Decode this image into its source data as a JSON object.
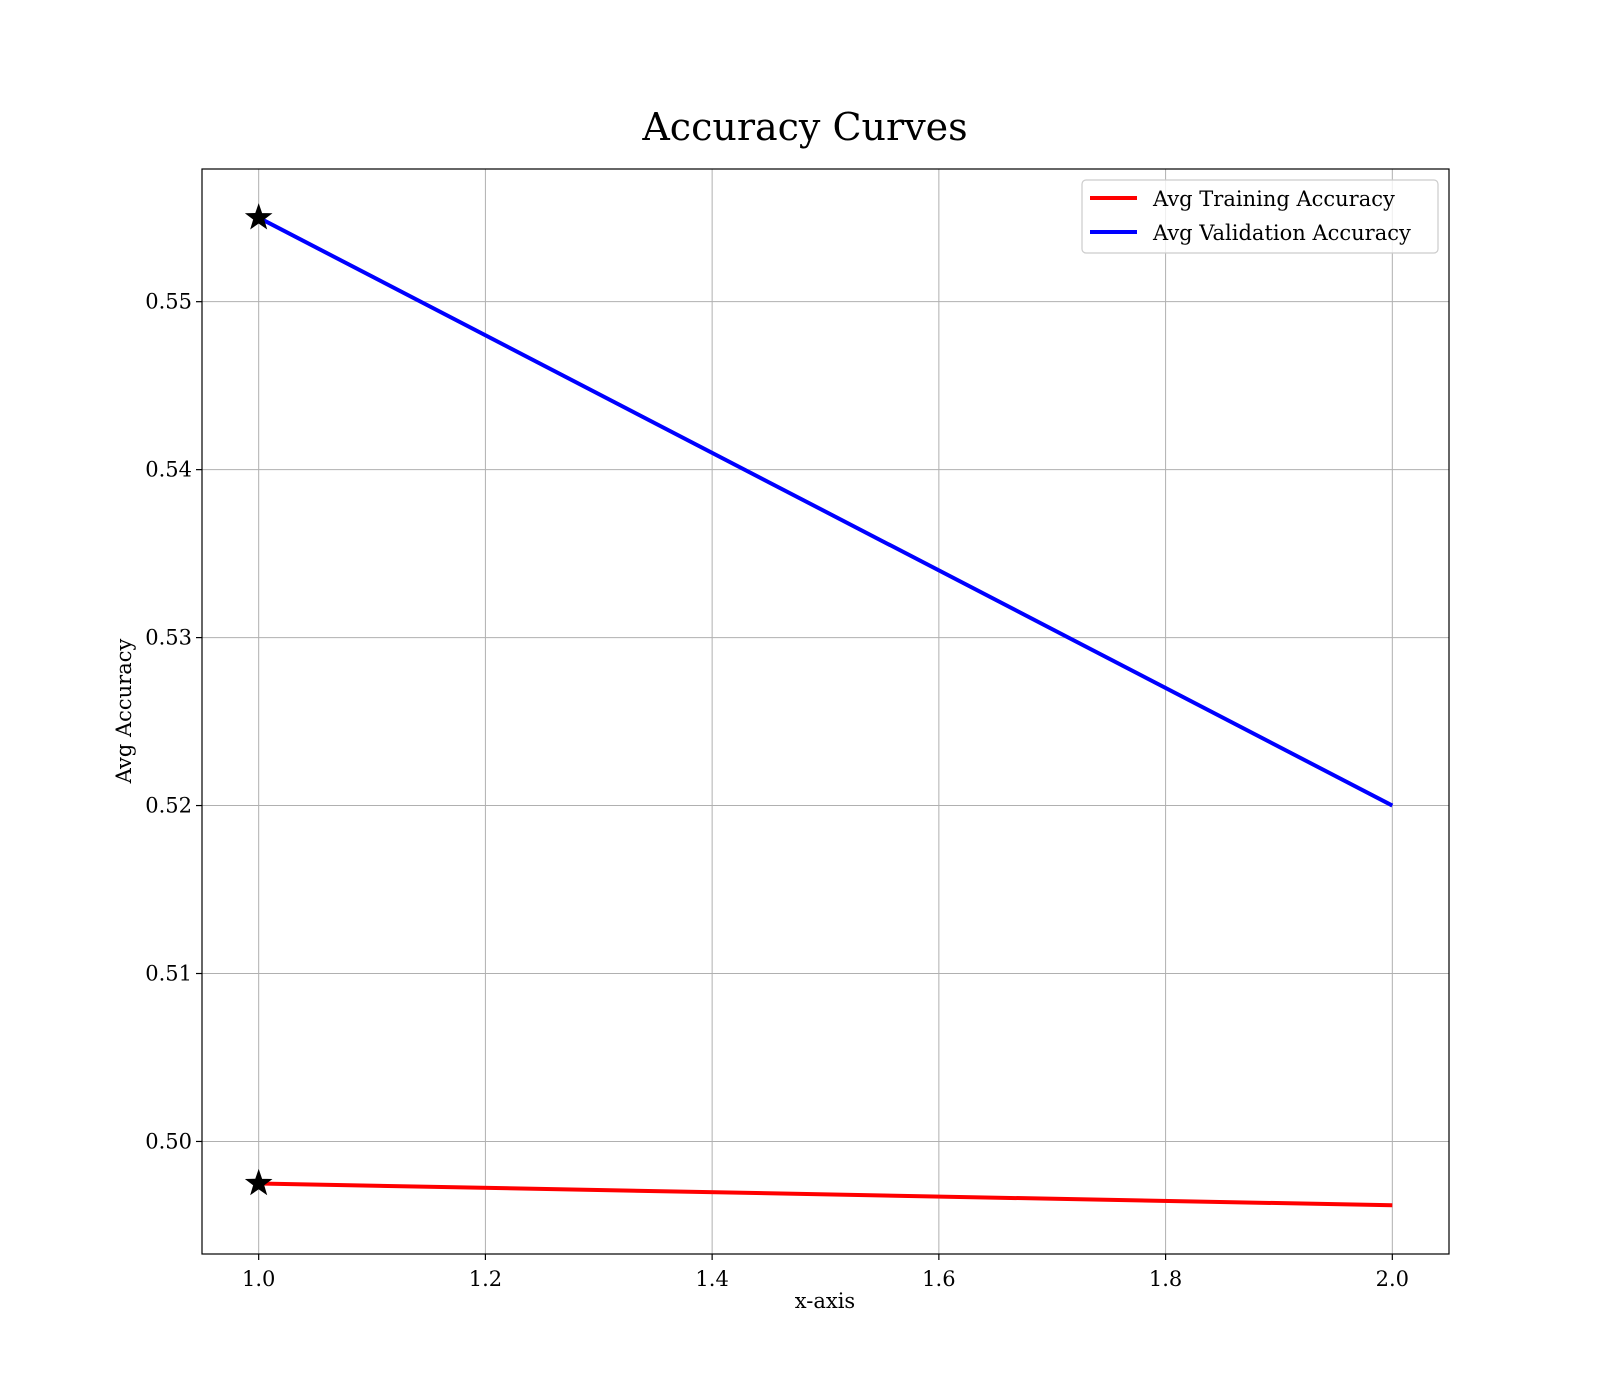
{
  "chart_data": {
    "type": "line",
    "title": "Accuracy Curves",
    "xlabel": "x-axis",
    "ylabel": "Avg Accuracy",
    "xlim": [
      0.95,
      2.05
    ],
    "ylim": [
      0.4933,
      0.5579
    ],
    "xticks": [
      1.0,
      1.2,
      1.4,
      1.6,
      1.8,
      2.0
    ],
    "xtick_labels": [
      "1.0",
      "1.2",
      "1.4",
      "1.6",
      "1.8",
      "2.0"
    ],
    "yticks": [
      0.5,
      0.51,
      0.52,
      0.53,
      0.54,
      0.55
    ],
    "ytick_labels": [
      "0.50",
      "0.51",
      "0.52",
      "0.53",
      "0.54",
      "0.55"
    ],
    "grid": true,
    "legend_position": "top-right",
    "series": [
      {
        "name": "Avg Training Accuracy",
        "color": "#ff0000",
        "x": [
          1,
          2
        ],
        "y": [
          0.4975,
          0.4962
        ]
      },
      {
        "name": "Avg Validation Accuracy",
        "color": "#0000ff",
        "x": [
          1,
          2
        ],
        "y": [
          0.555,
          0.52
        ]
      }
    ],
    "markers": [
      {
        "x": 1,
        "y": 0.555,
        "shape": "star",
        "color": "#000000"
      },
      {
        "x": 1,
        "y": 0.4975,
        "shape": "star",
        "color": "#000000"
      }
    ]
  }
}
